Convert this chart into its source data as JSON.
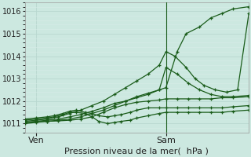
{
  "bg_color": "#cce8e0",
  "grid_major_color": "#b8d8d0",
  "grid_minor_color": "#d8ece8",
  "line_color": "#1a5c1a",
  "xlabel": "Pression niveau de la mer(  hPa )",
  "xlabel_fontsize": 8,
  "tick_fontsize": 7,
  "ylim": [
    1010.6,
    1016.4
  ],
  "yticks": [
    1011,
    1012,
    1013,
    1014,
    1015,
    1016
  ],
  "xlim": [
    0.0,
    1.0
  ],
  "xtick_labels": [
    "Ven",
    "Sam"
  ],
  "xtick_positions": [
    0.05,
    0.63
  ],
  "vline_x": 0.63,
  "series": [
    {
      "x": [
        0.0,
        0.05,
        0.1,
        0.15,
        0.2,
        0.25,
        0.3,
        0.35,
        0.4,
        0.45,
        0.5,
        0.55,
        0.6,
        0.63,
        0.68,
        0.72,
        0.78,
        0.83,
        0.88,
        0.93,
        1.0
      ],
      "y": [
        1011.05,
        1011.1,
        1011.15,
        1011.2,
        1011.3,
        1011.4,
        1011.55,
        1011.7,
        1011.9,
        1012.0,
        1012.15,
        1012.3,
        1012.5,
        1012.6,
        1014.2,
        1015.0,
        1015.3,
        1015.7,
        1015.9,
        1016.1,
        1016.2
      ]
    },
    {
      "x": [
        0.0,
        0.05,
        0.1,
        0.15,
        0.2,
        0.25,
        0.3,
        0.35,
        0.4,
        0.45,
        0.5,
        0.55,
        0.6,
        0.63,
        0.67,
        0.72,
        0.76,
        0.8,
        0.85,
        0.9,
        0.95,
        1.0
      ],
      "y": [
        1011.1,
        1011.15,
        1011.2,
        1011.3,
        1011.45,
        1011.6,
        1011.8,
        1012.0,
        1012.3,
        1012.6,
        1012.9,
        1013.2,
        1013.6,
        1014.2,
        1014.0,
        1013.5,
        1013.0,
        1012.7,
        1012.5,
        1012.4,
        1012.5,
        1015.9
      ]
    },
    {
      "x": [
        0.0,
        0.05,
        0.1,
        0.15,
        0.2,
        0.25,
        0.3,
        0.35,
        0.4,
        0.45,
        0.5,
        0.55,
        0.6,
        0.63,
        0.68,
        0.73,
        0.78,
        0.83,
        0.88,
        0.93,
        1.0
      ],
      "y": [
        1011.0,
        1011.05,
        1011.1,
        1011.15,
        1011.2,
        1011.3,
        1011.45,
        1011.6,
        1011.8,
        1012.0,
        1012.2,
        1012.35,
        1012.5,
        1013.5,
        1013.2,
        1012.8,
        1012.5,
        1012.3,
        1012.2,
        1012.2,
        1012.25
      ]
    },
    {
      "x": [
        0.0,
        0.05,
        0.1,
        0.15,
        0.2,
        0.25,
        0.3,
        0.35,
        0.4,
        0.45,
        0.5,
        0.55,
        0.6,
        0.63,
        0.68,
        0.73,
        0.78,
        0.83,
        0.88,
        0.93,
        1.0
      ],
      "y": [
        1011.05,
        1011.08,
        1011.1,
        1011.12,
        1011.15,
        1011.2,
        1011.3,
        1011.5,
        1011.7,
        1011.85,
        1011.95,
        1012.0,
        1012.05,
        1012.1,
        1012.1,
        1012.1,
        1012.1,
        1012.1,
        1012.15,
        1012.15,
        1012.2
      ]
    },
    {
      "x": [
        0.0,
        0.05,
        0.1,
        0.13,
        0.17,
        0.2,
        0.23,
        0.27,
        0.3,
        0.33,
        0.37,
        0.4,
        0.43,
        0.47,
        0.5,
        0.55,
        0.6,
        0.63,
        0.68,
        0.73,
        0.78,
        0.83,
        0.88,
        0.93,
        1.0
      ],
      "y": [
        1011.15,
        1011.2,
        1011.25,
        1011.3,
        1011.4,
        1011.5,
        1011.5,
        1011.45,
        1011.3,
        1011.1,
        1011.0,
        1011.05,
        1011.1,
        1011.15,
        1011.25,
        1011.35,
        1011.45,
        1011.5,
        1011.5,
        1011.5,
        1011.5,
        1011.5,
        1011.5,
        1011.55,
        1011.6
      ]
    },
    {
      "x": [
        0.0,
        0.05,
        0.1,
        0.13,
        0.17,
        0.2,
        0.23,
        0.27,
        0.3,
        0.33,
        0.37,
        0.4,
        0.43,
        0.47,
        0.5,
        0.55,
        0.6,
        0.63,
        0.68,
        0.73,
        0.78,
        0.83,
        0.88,
        0.93,
        1.0
      ],
      "y": [
        1011.2,
        1011.25,
        1011.3,
        1011.35,
        1011.45,
        1011.55,
        1011.6,
        1011.5,
        1011.45,
        1011.35,
        1011.3,
        1011.35,
        1011.4,
        1011.5,
        1011.6,
        1011.7,
        1011.7,
        1011.7,
        1011.7,
        1011.7,
        1011.7,
        1011.7,
        1011.7,
        1011.75,
        1011.8
      ]
    }
  ],
  "linewidth": 0.9,
  "markersize": 3.5,
  "markeredgewidth": 0.9
}
